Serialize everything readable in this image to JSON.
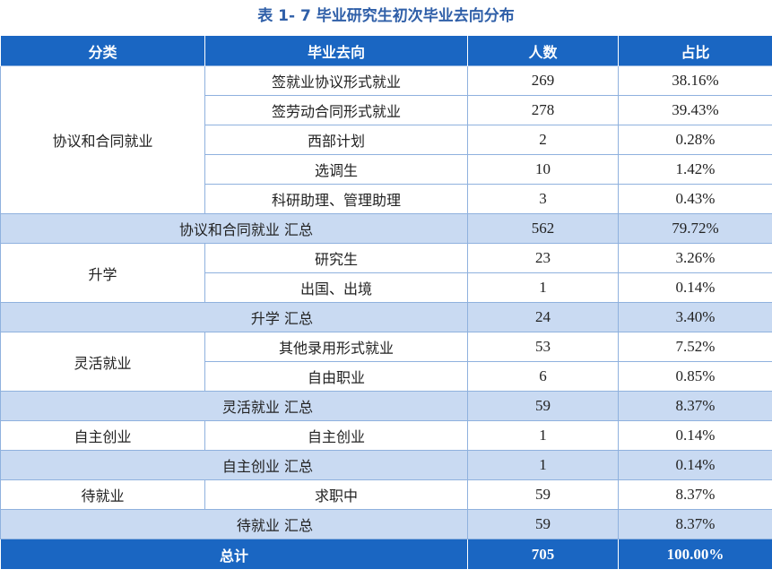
{
  "title": "表 1- 7  毕业研究生初次毕业去向分布",
  "headers": [
    "分类",
    "毕业去向",
    "人数",
    "占比"
  ],
  "groups": [
    {
      "category": "协议和合同就业",
      "rows": [
        {
          "dest": "签就业协议形式就业",
          "count": "269",
          "pct": "38.16%"
        },
        {
          "dest": "签劳动合同形式就业",
          "count": "278",
          "pct": "39.43%"
        },
        {
          "dest": "西部计划",
          "count": "2",
          "pct": "0.28%"
        },
        {
          "dest": "选调生",
          "count": "10",
          "pct": "1.42%"
        },
        {
          "dest": "科研助理、管理助理",
          "count": "3",
          "pct": "0.43%"
        }
      ],
      "subtotal": {
        "label": "协议和合同就业 汇总",
        "count": "562",
        "pct": "79.72%"
      }
    },
    {
      "category": "升学",
      "rows": [
        {
          "dest": "研究生",
          "count": "23",
          "pct": "3.26%"
        },
        {
          "dest": "出国、出境",
          "count": "1",
          "pct": "0.14%"
        }
      ],
      "subtotal": {
        "label": "升学 汇总",
        "count": "24",
        "pct": "3.40%"
      }
    },
    {
      "category": "灵活就业",
      "rows": [
        {
          "dest": "其他录用形式就业",
          "count": "53",
          "pct": "7.52%"
        },
        {
          "dest": "自由职业",
          "count": "6",
          "pct": "0.85%"
        }
      ],
      "subtotal": {
        "label": "灵活就业 汇总",
        "count": "59",
        "pct": "8.37%"
      }
    },
    {
      "category": "自主创业",
      "rows": [
        {
          "dest": "自主创业",
          "count": "1",
          "pct": "0.14%"
        }
      ],
      "subtotal": {
        "label": "自主创业 汇总",
        "count": "1",
        "pct": "0.14%"
      }
    },
    {
      "category": "待就业",
      "rows": [
        {
          "dest": "求职中",
          "count": "59",
          "pct": "8.37%"
        }
      ],
      "subtotal": {
        "label": "待就业 汇总",
        "count": "59",
        "pct": "8.37%"
      }
    }
  ],
  "total": {
    "label": "总计",
    "count": "705",
    "pct": "100.00%"
  }
}
